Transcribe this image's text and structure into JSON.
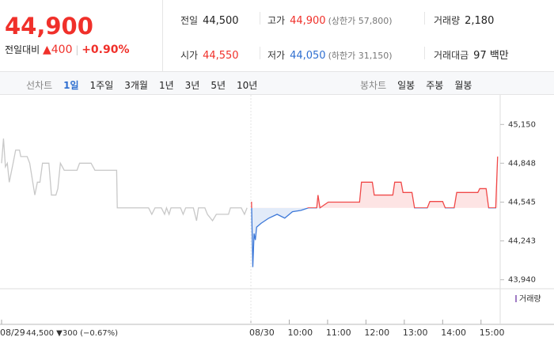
{
  "quote": {
    "price": "44,900",
    "change_label": "전일대비",
    "change": "▲400",
    "change_pct": "+0.90%"
  },
  "summary": [
    {
      "label": "전일",
      "value": "44,500"
    },
    {
      "label": "고가",
      "value": "44,900",
      "note": "(상한가 57,800)"
    },
    {
      "label": "거래량",
      "value": "2,180"
    },
    {
      "label": "시가",
      "value": "44,550"
    },
    {
      "label": "저가",
      "value": "44,050",
      "note": "(하한가 31,150)"
    },
    {
      "label": "거래대금",
      "value": "97 백만"
    }
  ],
  "tabs": {
    "line_label": "선차트",
    "line": [
      "1일",
      "1주일",
      "3개월",
      "1년",
      "3년",
      "5년",
      "10년"
    ],
    "candle_label": "봉차트",
    "candle": [
      "일봉",
      "주봉",
      "월봉"
    ]
  },
  "chart_data": {
    "type": "line",
    "series": [
      {
        "color": "#c8c8c8",
        "x": [
          0,
          3,
          6,
          9,
          12,
          18,
          22,
          28,
          30,
          40,
          44,
          52,
          56,
          60,
          64,
          74,
          78,
          85,
          88,
          92,
          98,
          118,
          122,
          140,
          146,
          180,
          181,
          230,
          235,
          240,
          250,
          255,
          258,
          262,
          265,
          280,
          284,
          288,
          300,
          305,
          308,
          318,
          322,
          330,
          336,
          355,
          358,
          375,
          380,
          384
        ],
        "values": [
          44848,
          45040,
          44820,
          44848,
          44700,
          44848,
          44950,
          44950,
          44900,
          44900,
          44848,
          44600,
          44700,
          44700,
          44848,
          44848,
          44600,
          44600,
          44650,
          44848,
          44793,
          44793,
          44848,
          44848,
          44793,
          44793,
          44500,
          44500,
          44450,
          44500,
          44500,
          44450,
          44500,
          44450,
          44500,
          44500,
          44450,
          44500,
          44500,
          44400,
          44500,
          44500,
          44450,
          44400,
          44450,
          44450,
          44500,
          44500,
          44450,
          44500
        ]
      },
      {
        "color": "#f04848",
        "down_color": "#3c78d8",
        "x": [
          391,
          393,
          395,
          397,
          399,
          406,
          418,
          431,
          443,
          455,
          468,
          480,
          493,
          495,
          498,
          511,
          560,
          563,
          580,
          583,
          612,
          615,
          625,
          628,
          642,
          646,
          666,
          670,
          690,
          694,
          708,
          712,
          745,
          748,
          758,
          762,
          773,
          776
        ],
        "values": [
          44548,
          44039,
          44300,
          44250,
          44350,
          44380,
          44420,
          44450,
          44420,
          44470,
          44480,
          44500,
          44500,
          44600,
          44500,
          44545,
          44545,
          44700,
          44700,
          44600,
          44600,
          44700,
          44700,
          44620,
          44620,
          44500,
          44500,
          44550,
          44550,
          44500,
          44500,
          44620,
          44620,
          44650,
          44650,
          44500,
          44500,
          44900
        ]
      }
    ],
    "baseline": 44500,
    "xlim": [
      0,
      780
    ],
    "xticks": [
      {
        "value": 0,
        "label": "08/29"
      },
      {
        "value": 390,
        "label": "08/30"
      },
      {
        "value": 450,
        "label": "10:00"
      },
      {
        "value": 510,
        "label": "11:00"
      },
      {
        "value": 570,
        "label": "12:00"
      },
      {
        "value": 630,
        "label": "13:00"
      },
      {
        "value": 690,
        "label": "14:00"
      },
      {
        "value": 750,
        "label": "15:00"
      }
    ],
    "ylim": [
      43870,
      45380
    ],
    "yticks": [
      {
        "value": 45150,
        "label": "45,150"
      },
      {
        "value": 44848,
        "label": "44,848"
      },
      {
        "value": 44545,
        "label": "44,545"
      },
      {
        "value": 44243,
        "label": "44,243"
      },
      {
        "value": 43940,
        "label": "43,940"
      }
    ],
    "volume_label": "거래량",
    "prev_info": "44,500 ▼300 (−0.67%)"
  }
}
